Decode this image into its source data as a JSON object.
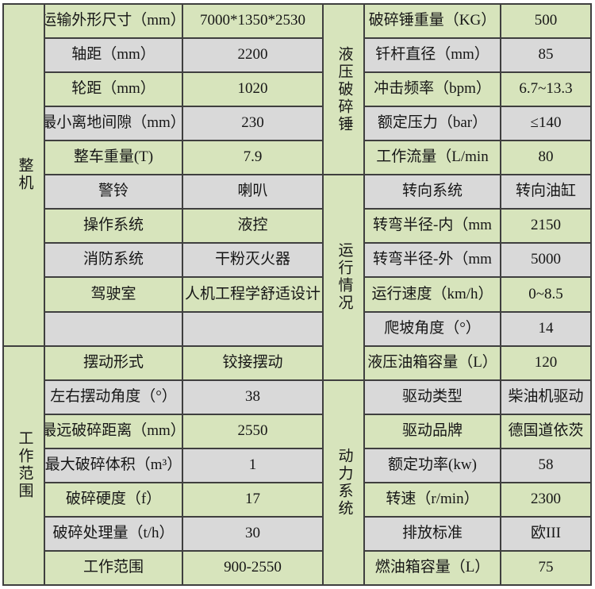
{
  "colors": {
    "row_green": "#d7e4bc",
    "row_gray": "#d9d9d9",
    "grid_line": "#3f3f3f",
    "page_background": "#ffffff",
    "text": "#161616"
  },
  "left": {
    "sections": [
      {
        "title": "整机",
        "start": 1,
        "span": 10
      },
      {
        "title": "工作范围",
        "start": 11,
        "span": 7
      }
    ],
    "rows": [
      {
        "label": "运输外形尺寸（mm）",
        "value": "7000*1350*2530"
      },
      {
        "label": "轴距（mm）",
        "value": "2200"
      },
      {
        "label": "轮距（mm）",
        "value": "1020"
      },
      {
        "label": "最小离地间隙（mm）",
        "value": "230"
      },
      {
        "label": "整车重量(T)",
        "value": "7.9"
      },
      {
        "label": "警铃",
        "value": "喇叭"
      },
      {
        "label": "操作系统",
        "value": "液控"
      },
      {
        "label": "消防系统",
        "value": "干粉灭火器"
      },
      {
        "label": "驾驶室",
        "value": "人机工程学舒适设计"
      },
      {
        "label": "",
        "value": ""
      },
      {
        "label": "摆动形式",
        "value": "铰接摆动"
      },
      {
        "label": "左右摆动角度（°）",
        "value": "38"
      },
      {
        "label": "最远破碎距离（mm）",
        "value": "2550"
      },
      {
        "label": "最大破碎体积（m³）",
        "value": "1"
      },
      {
        "label": "破碎硬度（f）",
        "value": "17"
      },
      {
        "label": "破碎处理量（t/h）",
        "value": "30"
      },
      {
        "label": "工作范围",
        "value": "900-2550"
      }
    ]
  },
  "right": {
    "sections": [
      {
        "title": "液压破碎锤",
        "start": 1,
        "span": 5
      },
      {
        "title": "运行情况",
        "start": 6,
        "span": 6
      },
      {
        "title": "动力系统",
        "start": 12,
        "span": 6
      }
    ],
    "rows": [
      {
        "label": "破碎锤重量（KG）",
        "value": "500"
      },
      {
        "label": "钎杆直径（mm）",
        "value": "85"
      },
      {
        "label": "冲击频率（bpm）",
        "value": "6.7~13.3"
      },
      {
        "label": "额定压力（bar）",
        "value": "≤140"
      },
      {
        "label": "工作流量（L/min",
        "value": "80"
      },
      {
        "label": "转向系统",
        "value": "转向油缸"
      },
      {
        "label": "转弯半径-内（mm",
        "value": "2150"
      },
      {
        "label": "转弯半径-外（mm",
        "value": "5000"
      },
      {
        "label": "运行速度（km/h）",
        "value": "0~8.5"
      },
      {
        "label": "爬坡角度（°）",
        "value": "14"
      },
      {
        "label": "液压油箱容量（L）",
        "value": "120"
      },
      {
        "label": "驱动类型",
        "value": "柴油机驱动"
      },
      {
        "label": "驱动品牌",
        "value": "德国道依茨"
      },
      {
        "label": "额定功率(kw)",
        "value": "58"
      },
      {
        "label": "转速（r/min）",
        "value": "2300"
      },
      {
        "label": "排放标准",
        "value": "欧III"
      },
      {
        "label": "燃油箱容量（L）",
        "value": "75"
      }
    ]
  }
}
